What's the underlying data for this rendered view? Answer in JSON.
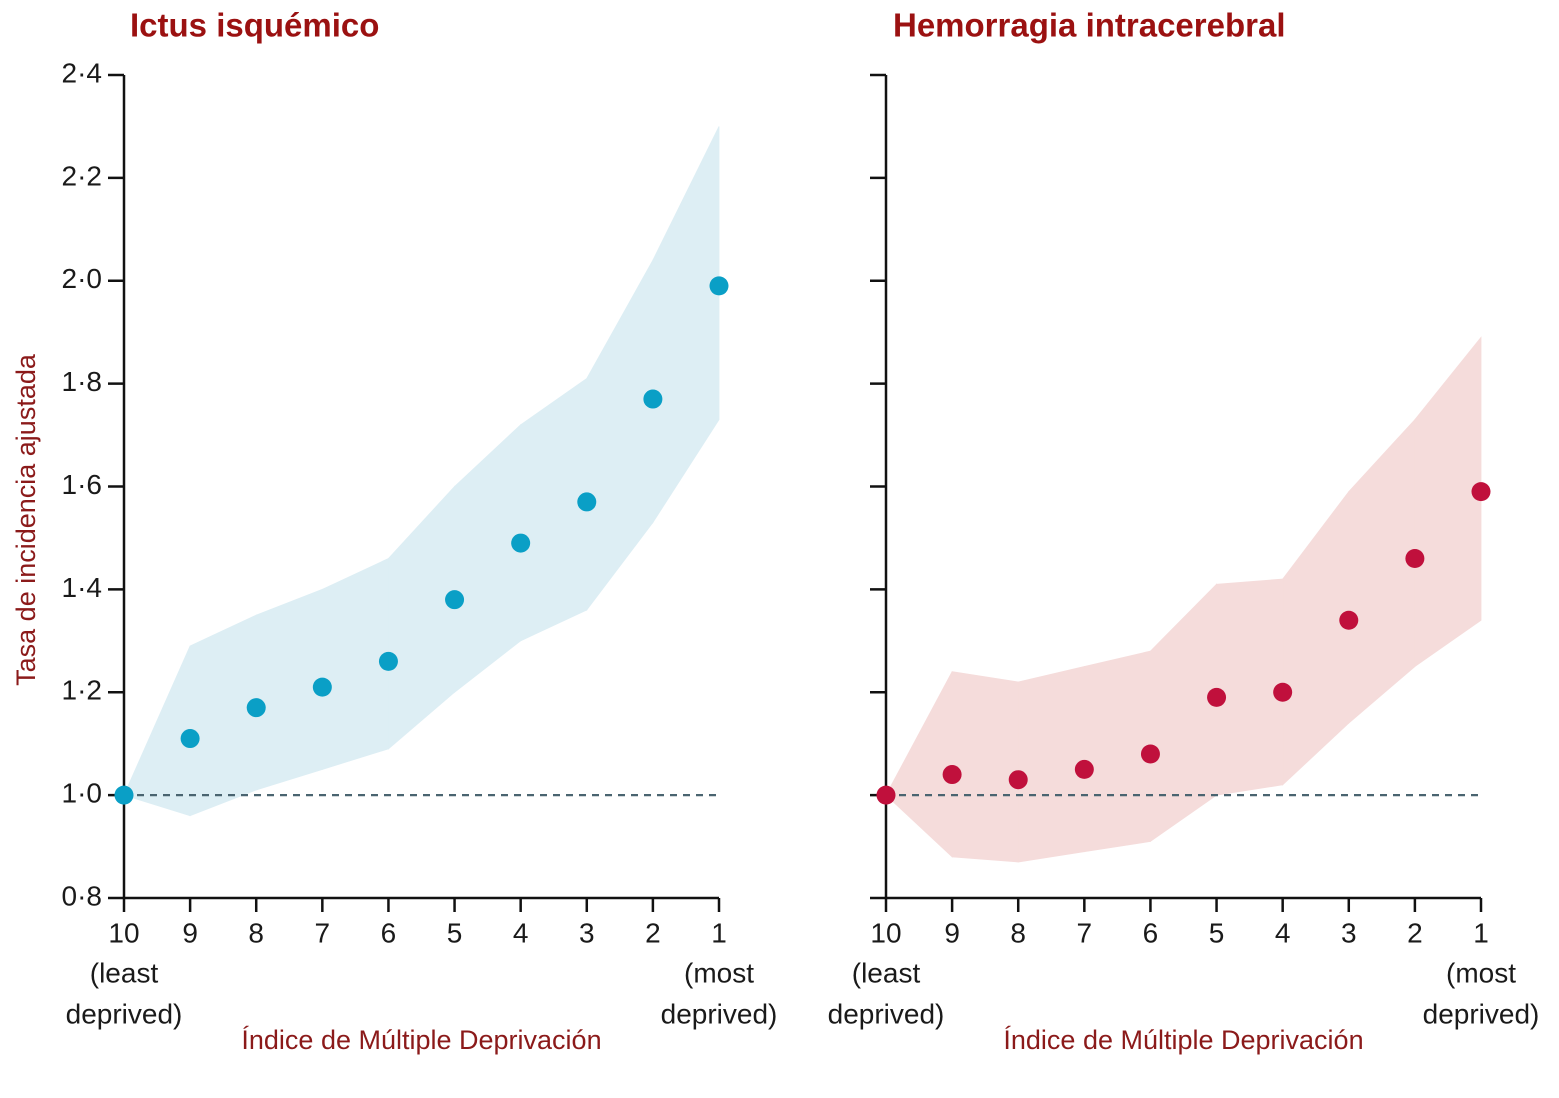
{
  "chart_data": [
    {
      "type": "scatter",
      "title": "Ictus isquémico",
      "x_label": "Índice de Múltiple Deprivación",
      "y_label": "Tasa de incidencia ajustada",
      "categories": [
        "10",
        "9",
        "8",
        "7",
        "6",
        "5",
        "4",
        "3",
        "2",
        "1"
      ],
      "x_end_labels": {
        "first": [
          "(least",
          "deprived)"
        ],
        "last": [
          "(most",
          "deprived)"
        ]
      },
      "values": [
        1.0,
        1.11,
        1.17,
        1.21,
        1.26,
        1.38,
        1.49,
        1.57,
        1.77,
        1.99
      ],
      "upper": [
        1.0,
        1.29,
        1.35,
        1.4,
        1.46,
        1.6,
        1.72,
        1.81,
        2.04,
        2.3
      ],
      "lower": [
        1.0,
        0.96,
        1.01,
        1.05,
        1.09,
        1.2,
        1.3,
        1.36,
        1.53,
        1.73
      ],
      "color": "#0a9fc6",
      "band_color": "#ddeef4",
      "reference_line": 1.0,
      "ylim": [
        0.8,
        2.4
      ],
      "show_ytick_labels": true,
      "yticks": [
        {
          "value": 0.8,
          "label": "0·8"
        },
        {
          "value": 1.0,
          "label": "1·0"
        },
        {
          "value": 1.2,
          "label": "1·2"
        },
        {
          "value": 1.4,
          "label": "1·4"
        },
        {
          "value": 1.6,
          "label": "1·6"
        },
        {
          "value": 1.8,
          "label": "1·8"
        },
        {
          "value": 2.0,
          "label": "2·0"
        },
        {
          "value": 2.2,
          "label": "2·2"
        },
        {
          "value": 2.4,
          "label": "2·4"
        }
      ]
    },
    {
      "type": "scatter",
      "title": "Hemorragia intracerebral",
      "x_label": "Índice de Múltiple Deprivación",
      "categories": [
        "10",
        "9",
        "8",
        "7",
        "6",
        "5",
        "4",
        "3",
        "2",
        "1"
      ],
      "x_end_labels": {
        "first": [
          "(least",
          "deprived)"
        ],
        "last": [
          "(most",
          "deprived)"
        ]
      },
      "values": [
        1.0,
        1.04,
        1.03,
        1.05,
        1.08,
        1.19,
        1.2,
        1.34,
        1.46,
        1.59
      ],
      "upper": [
        1.0,
        1.24,
        1.22,
        1.25,
        1.28,
        1.41,
        1.42,
        1.59,
        1.73,
        1.89
      ],
      "lower": [
        1.0,
        0.88,
        0.87,
        0.89,
        0.91,
        1.0,
        1.02,
        1.14,
        1.25,
        1.34
      ],
      "color": "#c0103c",
      "band_color": "#f5dcdb",
      "reference_line": 1.0,
      "ylim": [
        0.8,
        2.4
      ],
      "show_ytick_labels": false,
      "yticks": [
        0.8,
        1.0,
        1.2,
        1.4,
        1.6,
        1.8,
        2.0,
        2.2,
        2.4
      ]
    }
  ]
}
